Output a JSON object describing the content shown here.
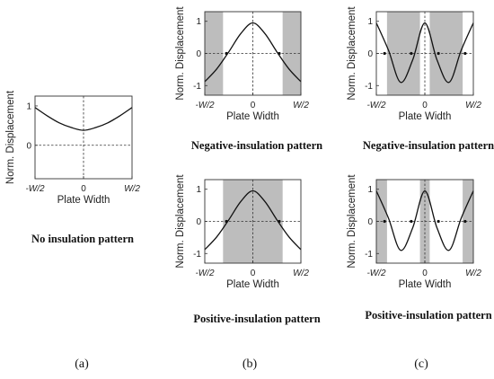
{
  "chart_data": [
    {
      "type": "line",
      "panel": "a",
      "caption": "No insulation pattern",
      "xlabel": "Plate Width",
      "ylabel": "Norm. Displacement",
      "xticks": [
        "-W/2",
        "0",
        "W/2"
      ],
      "yticks": [
        "0",
        "1"
      ],
      "xlim": [
        -1,
        1
      ],
      "ylim": [
        -0.85,
        1.25
      ],
      "x": [
        -1,
        -0.75,
        -0.5,
        -0.25,
        0,
        0.25,
        0.5,
        0.75,
        1
      ],
      "y": [
        0.96,
        0.75,
        0.57,
        0.45,
        0.38,
        0.45,
        0.57,
        0.75,
        0.96
      ],
      "shaded_regions": [],
      "marked_points": []
    },
    {
      "type": "line",
      "panel": "b",
      "caption": "Negative-insulation pattern",
      "xlabel": "Plate Width",
      "ylabel": "Norm. Displacement",
      "xticks": [
        "-W/2",
        "0",
        "W/2"
      ],
      "yticks": [
        "-1",
        "0",
        "1"
      ],
      "xlim": [
        -1,
        1
      ],
      "ylim": [
        -1.3,
        1.3
      ],
      "x": [
        -1,
        -0.75,
        -0.5,
        -0.25,
        0,
        0.25,
        0.5,
        0.75,
        1
      ],
      "y": [
        -0.88,
        -0.48,
        0.05,
        0.62,
        0.95,
        0.62,
        0.05,
        -0.48,
        -0.88
      ],
      "shaded_regions": [
        [
          -1,
          -0.62
        ],
        [
          0.62,
          1
        ]
      ],
      "marked_points": [
        [
          -0.55,
          0
        ],
        [
          0.55,
          0
        ]
      ]
    },
    {
      "type": "line",
      "panel": "c",
      "caption": "Negative-insulation pattern",
      "xlabel": "Plate Width",
      "ylabel": "Norm. Displacement",
      "xticks": [
        "-W/2",
        "0",
        "W/2"
      ],
      "yticks": [
        "-1",
        "0",
        "1"
      ],
      "xlim": [
        -1,
        1
      ],
      "ylim": [
        -1.3,
        1.3
      ],
      "x": [
        -1,
        -0.75,
        -0.5,
        -0.25,
        0,
        0.25,
        0.5,
        0.75,
        1
      ],
      "y": [
        0.95,
        0.1,
        -0.9,
        -0.2,
        0.95,
        -0.2,
        -0.9,
        0.1,
        0.95
      ],
      "shaded_regions": [
        [
          -0.78,
          -0.1
        ],
        [
          0.1,
          0.78
        ]
      ],
      "marked_points": [
        [
          -0.83,
          0
        ],
        [
          -0.28,
          0
        ],
        [
          0.28,
          0
        ],
        [
          0.83,
          0
        ]
      ]
    },
    {
      "type": "line",
      "panel": "b",
      "caption": "Positive-insulation pattern",
      "xlabel": "Plate Width",
      "ylabel": "Norm. Displacement",
      "xticks": [
        "-W/2",
        "0",
        "W/2"
      ],
      "yticks": [
        "-1",
        "0",
        "1"
      ],
      "xlim": [
        -1,
        1
      ],
      "ylim": [
        -1.3,
        1.3
      ],
      "x": [
        -1,
        -0.75,
        -0.5,
        -0.25,
        0,
        0.25,
        0.5,
        0.75,
        1
      ],
      "y": [
        -0.88,
        -0.48,
        0.05,
        0.62,
        0.95,
        0.62,
        0.05,
        -0.48,
        -0.88
      ],
      "shaded_regions": [
        [
          -0.62,
          0.62
        ]
      ],
      "marked_points": [
        [
          -0.55,
          0
        ],
        [
          0.55,
          0
        ]
      ]
    },
    {
      "type": "line",
      "panel": "c",
      "caption": "Positive-insulation pattern",
      "xlabel": "Plate Width",
      "ylabel": "Norm. Displacement",
      "xticks": [
        "-W/2",
        "0",
        "W/2"
      ],
      "yticks": [
        "-1",
        "0",
        "1"
      ],
      "xlim": [
        -1,
        1
      ],
      "ylim": [
        -1.3,
        1.3
      ],
      "x": [
        -1,
        -0.75,
        -0.5,
        -0.25,
        0,
        0.25,
        0.5,
        0.75,
        1
      ],
      "y": [
        0.95,
        0.1,
        -0.9,
        -0.2,
        0.95,
        -0.2,
        -0.9,
        0.1,
        0.95
      ],
      "shaded_regions": [
        [
          -1,
          -0.78
        ],
        [
          -0.1,
          0.1
        ],
        [
          0.78,
          1
        ]
      ],
      "marked_points": [
        [
          -0.83,
          0
        ],
        [
          -0.28,
          0
        ],
        [
          0.28,
          0
        ],
        [
          0.83,
          0
        ]
      ]
    }
  ],
  "panel_labels": [
    "(a)",
    "(b)",
    "(c)"
  ]
}
